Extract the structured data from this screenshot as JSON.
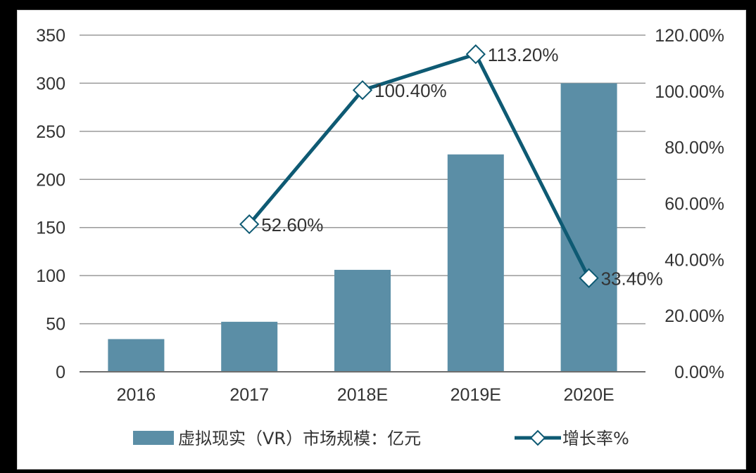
{
  "chart_data": {
    "type": "bar",
    "categories": [
      "2016",
      "2017",
      "2018E",
      "2019E",
      "2020E"
    ],
    "series": [
      {
        "name": "虚拟现实（VR）市场规模：亿元",
        "type": "bar",
        "axis": "left",
        "values": [
          34,
          52,
          106,
          226,
          300
        ]
      },
      {
        "name": "增长率%",
        "type": "line",
        "axis": "right",
        "values": [
          null,
          52.6,
          100.4,
          113.2,
          33.4
        ],
        "labels": [
          "",
          "52.60%",
          "100.40%",
          "113.20%",
          "33.40%"
        ]
      }
    ],
    "y_left": {
      "min": 0,
      "max": 350,
      "ticks": [
        "0",
        "50",
        "100",
        "150",
        "200",
        "250",
        "300",
        "350"
      ]
    },
    "y_right": {
      "min": 0,
      "max": 120,
      "ticks": [
        "0.00%",
        "20.00%",
        "40.00%",
        "60.00%",
        "80.00%",
        "100.00%",
        "120.00%"
      ]
    },
    "grid": true,
    "legend_position": "bottom"
  },
  "colors": {
    "bar": "#5b8ea6",
    "line": "#0e5a73",
    "grid": "#9a9a9a",
    "axis": "#6e6e6e"
  }
}
